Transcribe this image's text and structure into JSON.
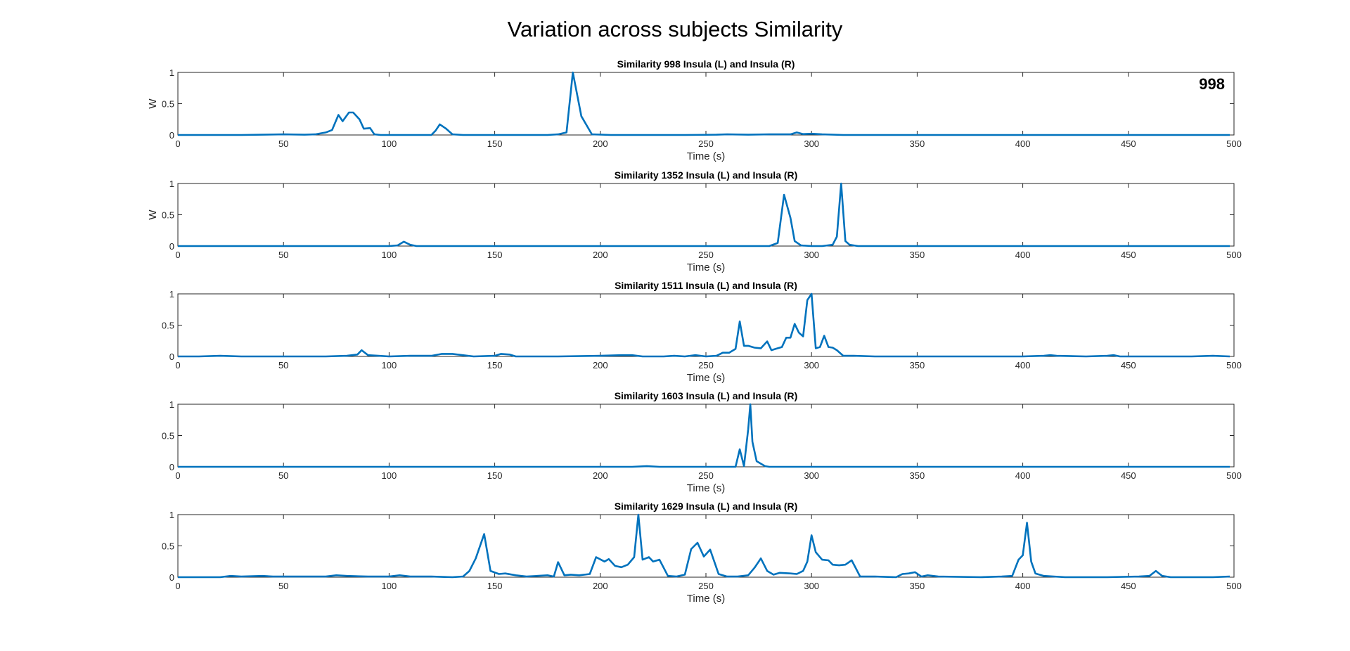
{
  "figure": {
    "title": "Variation across subjects Similarity"
  },
  "chart_data": [
    {
      "type": "line",
      "title": "Similarity 998 Insula (L) and Insula (R)",
      "xlabel": "Time (s)",
      "ylabel": "W",
      "annotation": "998",
      "xlim": [
        0,
        500
      ],
      "ylim": [
        0,
        1
      ],
      "xticks": [
        "0",
        "50",
        "100",
        "150",
        "200",
        "250",
        "300",
        "350",
        "400",
        "450",
        "500"
      ],
      "yticks": [
        "0",
        "0.5",
        "1"
      ],
      "series": [
        {
          "x": [
            0,
            10,
            20,
            30,
            40,
            50,
            60,
            65,
            70,
            73,
            76,
            78,
            81,
            83,
            86,
            88,
            91,
            93,
            96,
            100,
            110,
            120,
            122,
            124,
            127,
            130,
            135,
            145,
            160,
            175,
            180,
            184,
            187,
            191,
            196,
            205,
            220,
            240,
            255,
            260,
            270,
            280,
            290,
            293,
            296,
            300,
            305,
            315,
            330,
            350,
            380,
            400,
            420,
            440,
            460,
            480,
            495,
            498
          ],
          "y": [
            0,
            0,
            0,
            0,
            0.005,
            0.01,
            0.005,
            0.01,
            0.04,
            0.08,
            0.32,
            0.22,
            0.36,
            0.36,
            0.25,
            0.1,
            0.11,
            0.01,
            0,
            0,
            0,
            0,
            0.07,
            0.17,
            0.1,
            0.01,
            0,
            0,
            0,
            0,
            0.01,
            0.04,
            1.0,
            0.3,
            0.01,
            0,
            0,
            0,
            0.005,
            0.01,
            0.005,
            0.01,
            0.01,
            0.04,
            0.015,
            0.02,
            0.01,
            0,
            0,
            0,
            0,
            0,
            0,
            0,
            0,
            0,
            0,
            0
          ]
        }
      ]
    },
    {
      "type": "line",
      "title": "Similarity 1352 Insula (L) and Insula (R)",
      "xlabel": "Time (s)",
      "ylabel": "W",
      "xlim": [
        0,
        500
      ],
      "ylim": [
        0,
        1
      ],
      "xticks": [
        "0",
        "50",
        "100",
        "150",
        "200",
        "250",
        "300",
        "350",
        "400",
        "450",
        "500"
      ],
      "yticks": [
        "0",
        "0.5",
        "1"
      ],
      "series": [
        {
          "x": [
            0,
            50,
            100,
            104,
            107,
            110,
            113,
            150,
            200,
            250,
            280,
            284,
            287,
            290,
            292,
            295,
            300,
            305,
            310,
            312,
            314,
            316,
            318,
            322,
            350,
            400,
            450,
            498
          ],
          "y": [
            0,
            0,
            0,
            0.01,
            0.07,
            0.02,
            0,
            0,
            0,
            0,
            0,
            0.05,
            0.82,
            0.45,
            0.08,
            0.01,
            0,
            0,
            0.02,
            0.15,
            1.0,
            0.08,
            0.02,
            0,
            0,
            0,
            0,
            0
          ]
        }
      ]
    },
    {
      "type": "line",
      "title": "Similarity 1511 Insula (L) and Insula (R)",
      "xlabel": "Time (s)",
      "ylabel": "",
      "xlim": [
        0,
        500
      ],
      "ylim": [
        0,
        1
      ],
      "xticks": [
        "0",
        "50",
        "100",
        "150",
        "200",
        "250",
        "300",
        "350",
        "400",
        "450",
        "500"
      ],
      "yticks": [
        "0",
        "0.5",
        "1"
      ],
      "series": [
        {
          "x": [
            0,
            10,
            20,
            30,
            50,
            70,
            80,
            85,
            87,
            90,
            95,
            100,
            110,
            120,
            125,
            130,
            140,
            150,
            153,
            157,
            160,
            180,
            200,
            210,
            215,
            220,
            230,
            235,
            240,
            245,
            250,
            255,
            258,
            261,
            264,
            266,
            268,
            270,
            273,
            276,
            279,
            281,
            283,
            286,
            288,
            290,
            292,
            294,
            296,
            298,
            300,
            302,
            304,
            306,
            308,
            310,
            312,
            315,
            320,
            330,
            350,
            380,
            400,
            410,
            413,
            416,
            430,
            440,
            443,
            446,
            460,
            480,
            490,
            498
          ],
          "y": [
            0,
            0,
            0.01,
            0,
            0,
            0,
            0.01,
            0.03,
            0.1,
            0.02,
            0.01,
            0,
            0.01,
            0.01,
            0.04,
            0.04,
            0,
            0.01,
            0.04,
            0.03,
            0,
            0,
            0.01,
            0.02,
            0.02,
            0,
            0,
            0.01,
            0,
            0.02,
            0,
            0.01,
            0.06,
            0.06,
            0.12,
            0.56,
            0.17,
            0.17,
            0.14,
            0.13,
            0.24,
            0.1,
            0.12,
            0.15,
            0.3,
            0.3,
            0.52,
            0.38,
            0.32,
            0.9,
            1.0,
            0.13,
            0.15,
            0.33,
            0.15,
            0.14,
            0.1,
            0.01,
            0.01,
            0,
            0,
            0,
            0,
            0.01,
            0.02,
            0.01,
            0,
            0.01,
            0.02,
            0,
            0,
            0,
            0.01,
            0
          ]
        }
      ]
    },
    {
      "type": "line",
      "title": "Similarity 1603 Insula (L) and Insula (R)",
      "xlabel": "Time (s)",
      "ylabel": "",
      "xlim": [
        0,
        500
      ],
      "ylim": [
        0,
        1
      ],
      "xticks": [
        "0",
        "50",
        "100",
        "150",
        "200",
        "250",
        "300",
        "350",
        "400",
        "450",
        "500"
      ],
      "yticks": [
        "0",
        "0.5",
        "1"
      ],
      "series": [
        {
          "x": [
            0,
            50,
            100,
            150,
            200,
            215,
            222,
            228,
            240,
            250,
            260,
            264,
            266,
            268,
            270,
            271,
            272,
            274,
            278,
            280,
            300,
            350,
            400,
            450,
            498
          ],
          "y": [
            0,
            0,
            0,
            0,
            0,
            0,
            0.01,
            0,
            0,
            0,
            0,
            0,
            0.28,
            0.01,
            0.6,
            1.0,
            0.4,
            0.09,
            0.01,
            0,
            0,
            0,
            0,
            0,
            0
          ]
        }
      ]
    },
    {
      "type": "line",
      "title": "Similarity 1629 Insula (L) and Insula (R)",
      "xlabel": "Time (s)",
      "ylabel": "",
      "xlim": [
        0,
        500
      ],
      "ylim": [
        0,
        1
      ],
      "xticks": [
        "0",
        "50",
        "100",
        "150",
        "200",
        "250",
        "300",
        "350",
        "400",
        "450",
        "500"
      ],
      "yticks": [
        "0",
        "0.5",
        "1"
      ],
      "series": [
        {
          "x": [
            0,
            10,
            20,
            25,
            30,
            40,
            45,
            60,
            70,
            75,
            80,
            90,
            100,
            105,
            110,
            120,
            130,
            135,
            138,
            141,
            145,
            148,
            152,
            155,
            160,
            165,
            170,
            175,
            178,
            180,
            183,
            186,
            190,
            195,
            198,
            202,
            204,
            207,
            210,
            213,
            216,
            218,
            220,
            223,
            225,
            228,
            232,
            236,
            240,
            243,
            246,
            249,
            252,
            256,
            260,
            265,
            270,
            273,
            276,
            279,
            282,
            285,
            290,
            293,
            296,
            298,
            300,
            302,
            305,
            308,
            310,
            313,
            316,
            319,
            323,
            330,
            340,
            343,
            346,
            349,
            352,
            355,
            360,
            380,
            390,
            395,
            398,
            400,
            402,
            404,
            406,
            410,
            420,
            440,
            455,
            460,
            463,
            466,
            470,
            480,
            490,
            498
          ],
          "y": [
            0,
            0,
            0,
            0.02,
            0.01,
            0.02,
            0.01,
            0.01,
            0.01,
            0.03,
            0.02,
            0.01,
            0.01,
            0.03,
            0.01,
            0.01,
            0,
            0.01,
            0.1,
            0.3,
            0.69,
            0.1,
            0.05,
            0.06,
            0.03,
            0.01,
            0.02,
            0.03,
            0.01,
            0.24,
            0.03,
            0.04,
            0.03,
            0.05,
            0.32,
            0.25,
            0.29,
            0.18,
            0.16,
            0.2,
            0.32,
            1.0,
            0.28,
            0.32,
            0.25,
            0.28,
            0.02,
            0.01,
            0.04,
            0.45,
            0.55,
            0.33,
            0.44,
            0.05,
            0.01,
            0.01,
            0.03,
            0.15,
            0.3,
            0.1,
            0.04,
            0.07,
            0.06,
            0.05,
            0.1,
            0.25,
            0.67,
            0.4,
            0.28,
            0.27,
            0.2,
            0.19,
            0.2,
            0.27,
            0.01,
            0.01,
            0,
            0.05,
            0.06,
            0.08,
            0.01,
            0.03,
            0.01,
            0,
            0.01,
            0.02,
            0.28,
            0.35,
            0.87,
            0.25,
            0.06,
            0.02,
            0,
            0,
            0.01,
            0.02,
            0.1,
            0.02,
            0,
            0,
            0,
            0.01
          ]
        }
      ]
    }
  ]
}
